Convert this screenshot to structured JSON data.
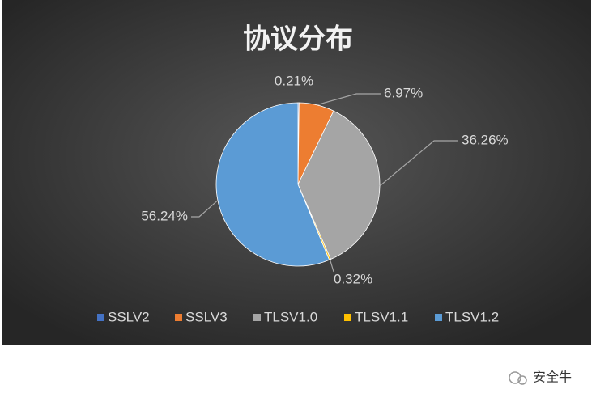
{
  "chart_data": {
    "type": "pie",
    "title": "协议分布",
    "categories": [
      "SSLV2",
      "SSLV3",
      "TLSV1.0",
      "TLSV1.1",
      "TLSV1.2"
    ],
    "values": [
      0.21,
      6.97,
      36.26,
      0.32,
      56.24
    ],
    "value_labels": [
      "0.21%",
      "6.97%",
      "36.26%",
      "0.32%",
      "56.24%"
    ],
    "colors": [
      "#4472c4",
      "#ed7d31",
      "#a5a5a5",
      "#ffc000",
      "#5b9bd5"
    ],
    "legend": "bottom"
  },
  "watermark": "安全牛"
}
